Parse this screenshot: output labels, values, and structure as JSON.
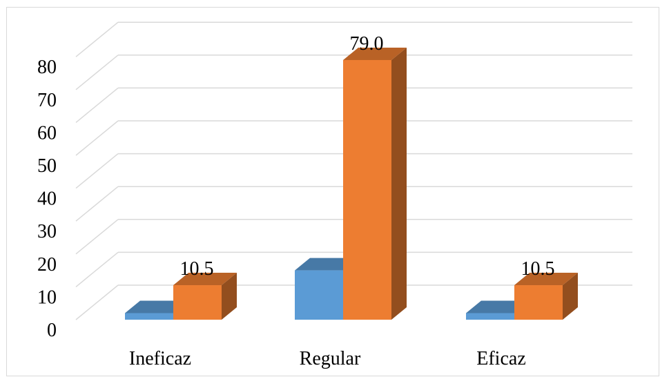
{
  "chart_data": {
    "type": "bar",
    "style": "3d-clustered-column",
    "categories": [
      "Ineficaz",
      "Regular",
      "Eficaz"
    ],
    "series": [
      {
        "values": [
          2.0,
          15.0,
          2.0
        ],
        "color": "#5b9bd5"
      },
      {
        "values": [
          10.5,
          79.0,
          10.5
        ],
        "color": "#ed7d31"
      }
    ],
    "data_labels": [
      "10.5",
      "79.0",
      "10.5"
    ],
    "ylim": [
      0,
      80
    ],
    "yticks": [
      "0",
      "10",
      "20",
      "30",
      "40",
      "50",
      "60",
      "70",
      "80"
    ],
    "grid": true,
    "legend": "none",
    "title": "",
    "xlabel": "",
    "ylabel": ""
  }
}
